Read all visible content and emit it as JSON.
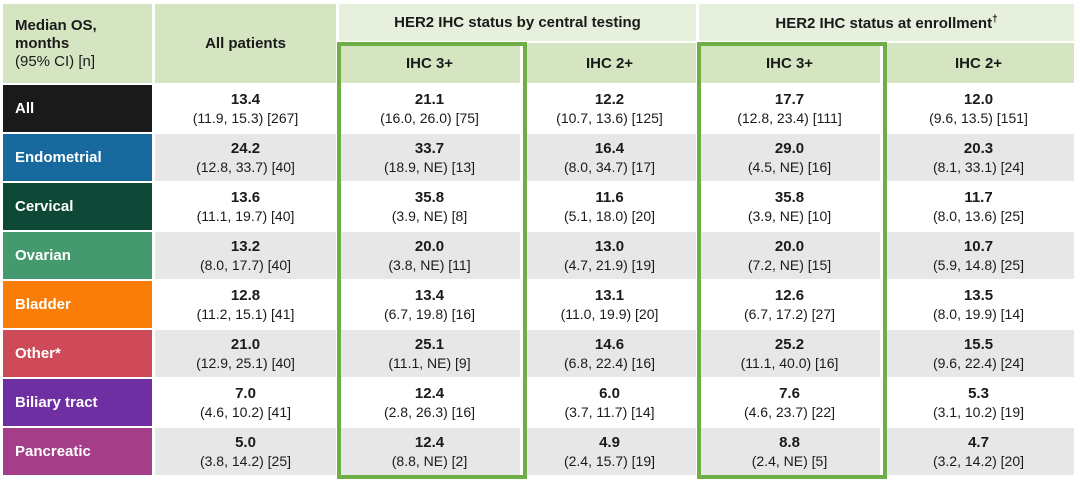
{
  "header": {
    "corner_line1": "Median OS,",
    "corner_line2": "months",
    "corner_line3": "(95% CI) [n]",
    "all_patients": "All patients",
    "group_central": "HER2 IHC status by central testing",
    "group_enrollment": "HER2 IHC status at enrollment",
    "group_enrollment_sup": "†",
    "central_ihc3": "IHC 3+",
    "central_ihc2": "IHC 2+",
    "enrollment_ihc3": "IHC 3+",
    "enrollment_ihc2": "IHC 2+"
  },
  "colors": {
    "header_green": "#d5e5c1",
    "header_green_light": "#e7f0dc",
    "highlight_border": "#6fad46",
    "stripe_gray": "#e7e7e7",
    "stripe_white": "#ffffff"
  },
  "rows": [
    {
      "label": "All",
      "color": "#1a1a1a",
      "cells": [
        {
          "median": "13.4",
          "ci": "(11.9, 15.3) [267]"
        },
        {
          "median": "21.1",
          "ci": "(16.0, 26.0) [75]"
        },
        {
          "median": "12.2",
          "ci": "(10.7, 13.6) [125]"
        },
        {
          "median": "17.7",
          "ci": "(12.8, 23.4) [111]"
        },
        {
          "median": "12.0",
          "ci": "(9.6, 13.5) [151]"
        }
      ]
    },
    {
      "label": "Endometrial",
      "color": "#17699e",
      "cells": [
        {
          "median": "24.2",
          "ci": "(12.8, 33.7) [40]"
        },
        {
          "median": "33.7",
          "ci": "(18.9, NE) [13]"
        },
        {
          "median": "16.4",
          "ci": "(8.0, 34.7) [17]"
        },
        {
          "median": "29.0",
          "ci": "(4.5, NE) [16]"
        },
        {
          "median": "20.3",
          "ci": "(8.1, 33.1) [24]"
        }
      ]
    },
    {
      "label": "Cervical",
      "color": "#0e4937",
      "cells": [
        {
          "median": "13.6",
          "ci": "(11.1, 19.7) [40]"
        },
        {
          "median": "35.8",
          "ci": "(3.9, NE) [8]"
        },
        {
          "median": "11.6",
          "ci": "(5.1, 18.0) [20]"
        },
        {
          "median": "35.8",
          "ci": "(3.9, NE) [10]"
        },
        {
          "median": "11.7",
          "ci": "(8.0, 13.6) [25]"
        }
      ]
    },
    {
      "label": "Ovarian",
      "color": "#449a6e",
      "cells": [
        {
          "median": "13.2",
          "ci": "(8.0, 17.7) [40]"
        },
        {
          "median": "20.0",
          "ci": "(3.8, NE) [11]"
        },
        {
          "median": "13.0",
          "ci": "(4.7, 21.9) [19]"
        },
        {
          "median": "20.0",
          "ci": "(7.2, NE) [15]"
        },
        {
          "median": "10.7",
          "ci": "(5.9, 14.8) [25]"
        }
      ]
    },
    {
      "label": "Bladder",
      "color": "#f97d07",
      "cells": [
        {
          "median": "12.8",
          "ci": "(11.2, 15.1) [41]"
        },
        {
          "median": "13.4",
          "ci": "(6.7, 19.8) [16]"
        },
        {
          "median": "13.1",
          "ci": "(11.0, 19.9) [20]"
        },
        {
          "median": "12.6",
          "ci": "(6.7, 17.2) [27]"
        },
        {
          "median": "13.5",
          "ci": "(8.0, 19.9) [14]"
        }
      ]
    },
    {
      "label": "Other*",
      "color": "#cf4a59",
      "cells": [
        {
          "median": "21.0",
          "ci": "(12.9, 25.1) [40]"
        },
        {
          "median": "25.1",
          "ci": "(11.1, NE) [9]"
        },
        {
          "median": "14.6",
          "ci": "(6.8, 22.4) [16]"
        },
        {
          "median": "25.2",
          "ci": "(11.1, 40.0) [16]"
        },
        {
          "median": "15.5",
          "ci": "(9.6, 22.4) [24]"
        }
      ]
    },
    {
      "label": "Biliary tract",
      "color": "#6e2fa3",
      "cells": [
        {
          "median": "7.0",
          "ci": "(4.6, 10.2) [41]"
        },
        {
          "median": "12.4",
          "ci": "(2.8, 26.3) [16]"
        },
        {
          "median": "6.0",
          "ci": "(3.7, 11.7) [14]"
        },
        {
          "median": "7.6",
          "ci": "(4.6, 23.7) [22]"
        },
        {
          "median": "5.3",
          "ci": "(3.1, 10.2) [19]"
        }
      ]
    },
    {
      "label": "Pancreatic",
      "color": "#a43e88",
      "cells": [
        {
          "median": "5.0",
          "ci": "(3.8, 14.2) [25]"
        },
        {
          "median": "12.4",
          "ci": "(8.8, NE) [2]"
        },
        {
          "median": "4.9",
          "ci": "(2.4, 15.7) [19]"
        },
        {
          "median": "8.8",
          "ci": "(2.4, NE) [5]"
        },
        {
          "median": "4.7",
          "ci": "(3.2, 14.2) [20]"
        }
      ]
    }
  ]
}
